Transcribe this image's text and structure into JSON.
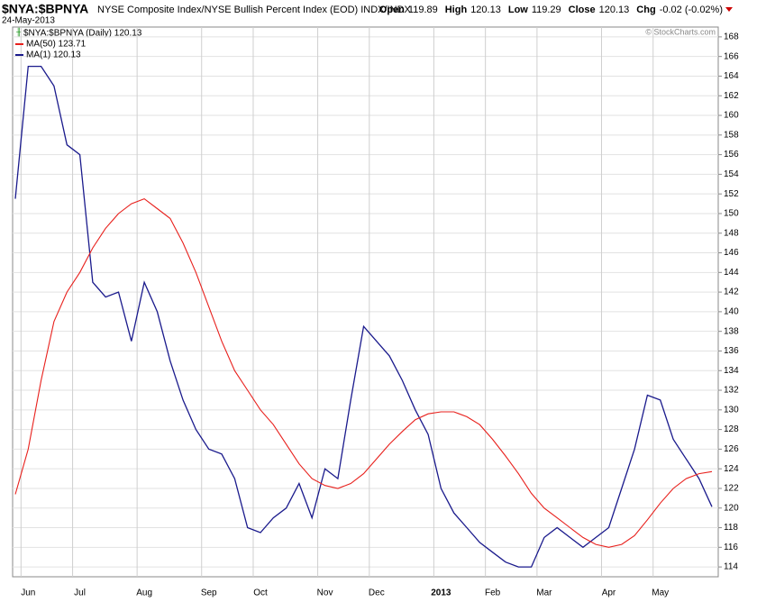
{
  "chart_data": {
    "type": "line",
    "symbol": "$NYA:$BPNYA",
    "subtitle": "NYSE Composite Index/NYSE Bullish Percent Index (EOD) INDX/INDX",
    "date": "24-May-2013",
    "quote": [
      {
        "label": "Open",
        "value": 119.89
      },
      {
        "label": "High",
        "value": 120.13
      },
      {
        "label": "Low",
        "value": 119.29
      },
      {
        "label": "Close",
        "value": 120.13
      },
      {
        "label": "Chg",
        "value": "-0.02 (-0.02%)"
      }
    ],
    "watermark": "© StockCharts.com",
    "legend_title": "$NYA:$BPNYA (Daily) 120.13",
    "categories": [
      null,
      "Jun",
      null,
      null,
      null,
      "Jul",
      null,
      null,
      null,
      null,
      "Aug",
      null,
      null,
      null,
      null,
      "Sep",
      null,
      null,
      null,
      "Oct",
      null,
      null,
      null,
      null,
      "Nov",
      null,
      null,
      null,
      "Dec",
      null,
      null,
      null,
      null,
      "2013",
      null,
      null,
      null,
      "Feb",
      null,
      null,
      null,
      "Mar",
      null,
      null,
      null,
      null,
      "Apr",
      null,
      null,
      null,
      "May",
      null,
      null,
      null,
      null
    ],
    "series": [
      {
        "name": "MA(1) 120.13",
        "color": "#1a1a8c",
        "values": [
          151.5,
          165,
          165,
          163,
          157,
          156,
          143,
          141.5,
          142,
          137,
          143,
          140,
          135,
          131,
          128,
          126,
          125.5,
          123,
          118,
          117.5,
          119,
          120,
          122.5,
          119,
          124,
          123,
          131,
          138.5,
          137,
          135.5,
          133,
          130,
          127.5,
          122,
          119.5,
          118,
          116.5,
          115.5,
          114.5,
          114,
          114,
          117,
          118,
          117,
          116,
          117,
          118,
          122,
          126,
          131.5,
          131,
          127,
          125,
          123,
          120.13
        ]
      },
      {
        "name": "MA(50) 123.71",
        "color": "#e8201c",
        "values": [
          121.4,
          126,
          133,
          139,
          142,
          144,
          146.5,
          148.5,
          150,
          151,
          151.5,
          150.5,
          149.5,
          147,
          144,
          140.5,
          137,
          134,
          132,
          130,
          128.5,
          126.5,
          124.5,
          123,
          122.3,
          122,
          122.5,
          123.5,
          125,
          126.5,
          127.8,
          129,
          129.6,
          129.8,
          129.8,
          129.3,
          128.5,
          127,
          125.3,
          123.5,
          121.5,
          120,
          119,
          118,
          117,
          116.3,
          116,
          116.3,
          117.2,
          118.8,
          120.5,
          122,
          123,
          123.5,
          123.71
        ]
      }
    ],
    "ylim": [
      113,
      169
    ],
    "yticks": [
      114,
      116,
      118,
      120,
      122,
      124,
      126,
      128,
      130,
      132,
      134,
      136,
      138,
      140,
      142,
      144,
      146,
      148,
      150,
      152,
      154,
      156,
      158,
      160,
      162,
      164,
      166,
      168
    ],
    "grid": true
  }
}
